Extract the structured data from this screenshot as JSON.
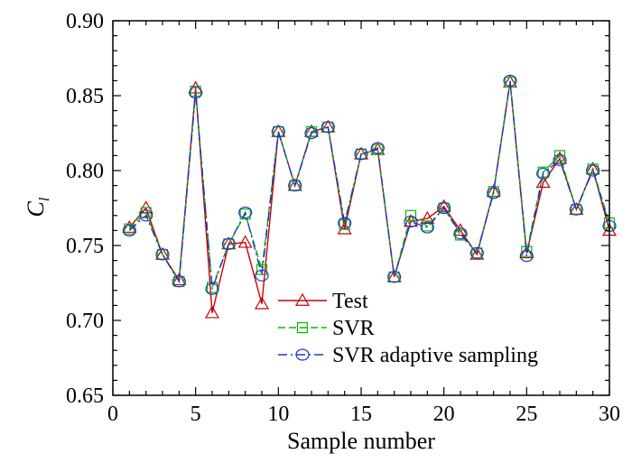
{
  "chart_data": {
    "type": "line",
    "xlabel": "Sample number",
    "ylabel": "C",
    "ylabel_sub": "l",
    "xlim": [
      0,
      30
    ],
    "ylim": [
      0.65,
      0.9
    ],
    "xticks": [
      0,
      5,
      10,
      15,
      20,
      25,
      30
    ],
    "yticks": [
      0.65,
      0.7,
      0.75,
      0.8,
      0.85,
      0.9
    ],
    "x_tick_labels": [
      "0",
      "5",
      "10",
      "15",
      "20",
      "25",
      "30"
    ],
    "y_tick_labels": [
      "0.65",
      "0.70",
      "0.75",
      "0.80",
      "0.85",
      "0.90"
    ],
    "grid": false,
    "legend_position": "bottom-center",
    "x": [
      1,
      2,
      3,
      4,
      5,
      6,
      7,
      8,
      9,
      10,
      11,
      12,
      13,
      14,
      15,
      16,
      17,
      18,
      19,
      20,
      21,
      22,
      23,
      24,
      25,
      26,
      27,
      28,
      29,
      30
    ],
    "series": [
      {
        "name": "Test",
        "color": "#cc0000",
        "marker": "triangle",
        "dash": "solid",
        "values": [
          0.762,
          0.775,
          0.744,
          0.727,
          0.855,
          0.705,
          0.751,
          0.752,
          0.711,
          0.826,
          0.79,
          0.826,
          0.829,
          0.761,
          0.811,
          0.814,
          0.729,
          0.766,
          0.768,
          0.776,
          0.76,
          0.744,
          0.786,
          0.859,
          0.745,
          0.792,
          0.808,
          0.774,
          0.801,
          0.76
        ]
      },
      {
        "name": "SVR",
        "color": "#00bb00",
        "marker": "square",
        "dash": "dashed",
        "values": [
          0.761,
          0.772,
          0.744,
          0.726,
          0.853,
          0.722,
          0.751,
          0.771,
          0.734,
          0.826,
          0.79,
          0.826,
          0.829,
          0.764,
          0.811,
          0.814,
          0.729,
          0.77,
          0.763,
          0.775,
          0.757,
          0.745,
          0.786,
          0.859,
          0.746,
          0.799,
          0.81,
          0.774,
          0.801,
          0.765
        ]
      },
      {
        "name": "SVR adaptive sampling",
        "color": "#2233cc",
        "marker": "circle",
        "dash": "dashdot",
        "values": [
          0.76,
          0.77,
          0.744,
          0.726,
          0.852,
          0.721,
          0.751,
          0.772,
          0.73,
          0.826,
          0.79,
          0.825,
          0.829,
          0.765,
          0.811,
          0.815,
          0.729,
          0.766,
          0.762,
          0.775,
          0.758,
          0.745,
          0.785,
          0.86,
          0.743,
          0.798,
          0.807,
          0.774,
          0.8,
          0.763
        ]
      }
    ]
  }
}
